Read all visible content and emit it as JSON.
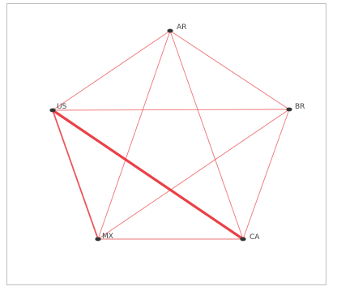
{
  "graph": {
    "nodes": [
      {
        "id": "AR",
        "label": "AR"
      },
      {
        "id": "US",
        "label": "US"
      },
      {
        "id": "BR",
        "label": "BR"
      },
      {
        "id": "MX",
        "label": "MX"
      },
      {
        "id": "CA",
        "label": "CA"
      }
    ],
    "edges": [
      {
        "source": "AR",
        "target": "US",
        "weight": 1
      },
      {
        "source": "AR",
        "target": "BR",
        "weight": 1
      },
      {
        "source": "AR",
        "target": "MX",
        "weight": 1
      },
      {
        "source": "AR",
        "target": "CA",
        "weight": 1
      },
      {
        "source": "US",
        "target": "BR",
        "weight": 1
      },
      {
        "source": "US",
        "target": "MX",
        "weight": 2
      },
      {
        "source": "US",
        "target": "CA",
        "weight": 4
      },
      {
        "source": "BR",
        "target": "MX",
        "weight": 1
      },
      {
        "source": "BR",
        "target": "CA",
        "weight": 1
      },
      {
        "source": "MX",
        "target": "CA",
        "weight": 1
      }
    ],
    "colors": {
      "edge": "#e8373d",
      "node": "#333333",
      "label": "#444444",
      "frame": "#bdbdbd"
    }
  }
}
